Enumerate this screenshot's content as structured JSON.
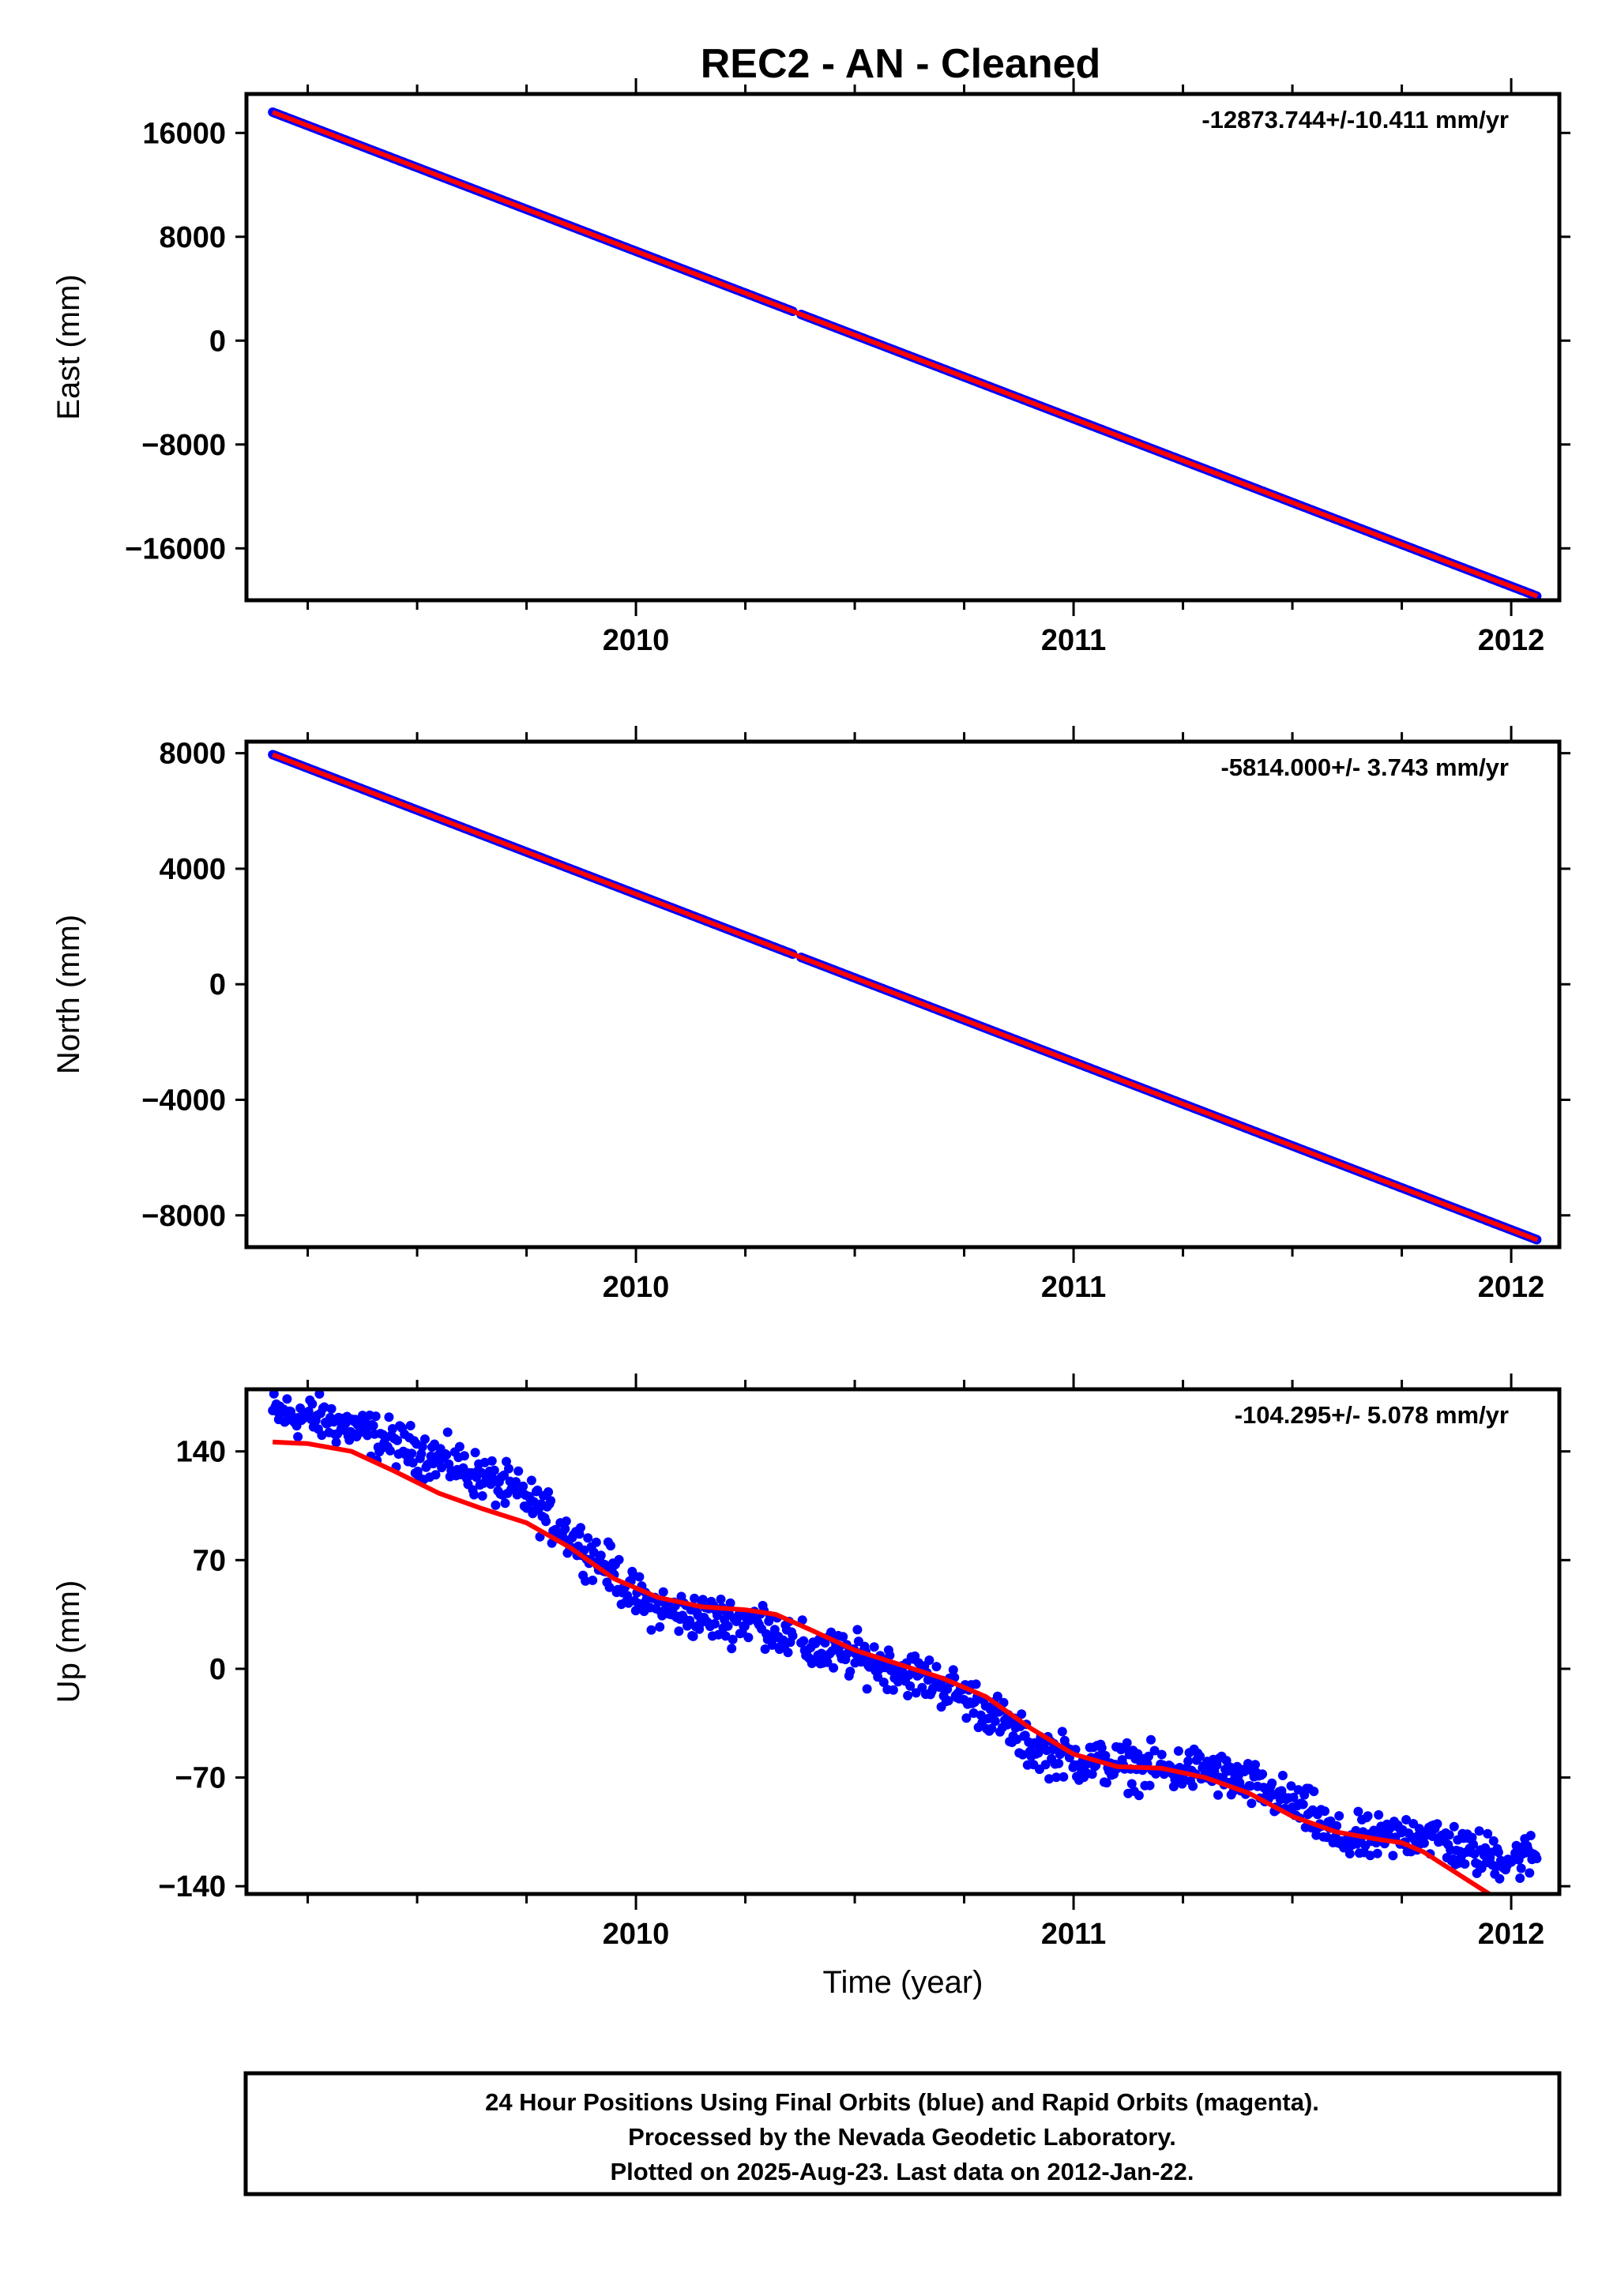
{
  "title": "REC2  - AN - Cleaned",
  "footer": {
    "lines": [
      "24 Hour Positions Using Final Orbits (blue) and Rapid Orbits (magenta).",
      "Processed by the Nevada Geodetic Laboratory.",
      "Plotted on 2025-Aug-23. Last data on 2012-Jan-22."
    ]
  },
  "colors": {
    "final_orbits": "#0000ff",
    "fit": "#ff0000",
    "frame": "#000000"
  },
  "chart_data": [
    {
      "type": "scatter",
      "panel": "east",
      "ylabel": "East (mm)",
      "xlabel": "",
      "rate_label": "-12873.744+/-10.411 mm/yr",
      "xlim": [
        2009.11,
        2012.11
      ],
      "ylim": [
        -20000,
        19000
      ],
      "xticks": [
        2010,
        2011,
        2012
      ],
      "yticks": [
        16000,
        8000,
        0,
        -8000,
        -16000
      ],
      "ytick_labels": [
        "16000",
        "8000",
        "0",
        "−8000",
        "−16000"
      ],
      "series": [
        {
          "kind": "points",
          "color": "#0000ff",
          "x_start": 2009.17,
          "x_end": 2012.06,
          "y_start": 17600,
          "y_end": -19700,
          "noise": 0
        },
        {
          "kind": "fit",
          "color": "#ff0000",
          "x": [
            2009.17,
            2012.06
          ],
          "y": [
            17600,
            -19700
          ]
        }
      ]
    },
    {
      "type": "scatter",
      "panel": "north",
      "ylabel": "North (mm)",
      "xlabel": "",
      "rate_label": "-5814.000+/- 3.743 mm/yr",
      "xlim": [
        2009.11,
        2012.11
      ],
      "ylim": [
        -9100,
        8400
      ],
      "xticks": [
        2010,
        2011,
        2012
      ],
      "yticks": [
        8000,
        4000,
        0,
        -4000,
        -8000
      ],
      "ytick_labels": [
        "8000",
        "4000",
        "0",
        "−4000",
        "−8000"
      ],
      "series": [
        {
          "kind": "points",
          "color": "#0000ff",
          "x_start": 2009.17,
          "x_end": 2012.06,
          "y_start": 7950,
          "y_end": -8850,
          "noise": 0
        },
        {
          "kind": "fit",
          "color": "#ff0000",
          "x": [
            2009.17,
            2012.06
          ],
          "y": [
            7950,
            -8850
          ]
        }
      ]
    },
    {
      "type": "scatter",
      "panel": "up",
      "ylabel": "Up (mm)",
      "xlabel": "Time (year)",
      "rate_label": "-104.295+/- 5.078 mm/yr",
      "xlim": [
        2009.11,
        2012.11
      ],
      "ylim": [
        -145,
        180
      ],
      "xticks": [
        2010,
        2011,
        2012
      ],
      "yticks": [
        140,
        70,
        0,
        -70,
        -140
      ],
      "ytick_labels": [
        "140",
        "70",
        "0",
        "−70",
        "−140"
      ],
      "series": [
        {
          "kind": "points",
          "color": "#0000ff",
          "noise": 9,
          "trend_x": [
            2009.17,
            2009.3,
            2009.45,
            2009.6,
            2009.75,
            2009.85,
            2009.95,
            2010.0,
            2010.1,
            2010.2,
            2010.3,
            2010.35,
            2010.4,
            2010.5,
            2010.6,
            2010.7,
            2010.8,
            2010.9,
            2011.0,
            2011.1,
            2011.2,
            2011.3,
            2011.45,
            2011.55,
            2011.6,
            2011.7,
            2011.8,
            2011.9,
            2012.0,
            2012.06
          ],
          "trend_y": [
            165,
            160,
            145,
            130,
            110,
            85,
            62,
            45,
            35,
            32,
            30,
            18,
            12,
            8,
            0,
            -10,
            -25,
            -50,
            -58,
            -62,
            -65,
            -65,
            -80,
            -95,
            -110,
            -110,
            -105,
            -118,
            -122,
            -120
          ]
        },
        {
          "kind": "fit",
          "color": "#ff0000",
          "x": [
            2009.17,
            2009.25,
            2009.35,
            2009.45,
            2009.55,
            2009.65,
            2009.75,
            2009.85,
            2009.95,
            2010.05,
            2010.15,
            2010.25,
            2010.32,
            2010.4,
            2010.5,
            2010.6,
            2010.7,
            2010.8,
            2010.9,
            2011.0,
            2011.1,
            2011.2,
            2011.3,
            2011.4,
            2011.5,
            2011.6,
            2011.7,
            2011.75,
            2011.8,
            2011.85,
            2011.95
          ],
          "y": [
            146,
            145,
            140,
            127,
            113,
            103,
            94,
            78,
            58,
            46,
            40,
            38,
            35,
            25,
            12,
            3,
            -6,
            -18,
            -38,
            -55,
            -63,
            -64,
            -70,
            -80,
            -95,
            -105,
            -110,
            -112,
            -118,
            -127,
            -145
          ]
        }
      ]
    }
  ]
}
